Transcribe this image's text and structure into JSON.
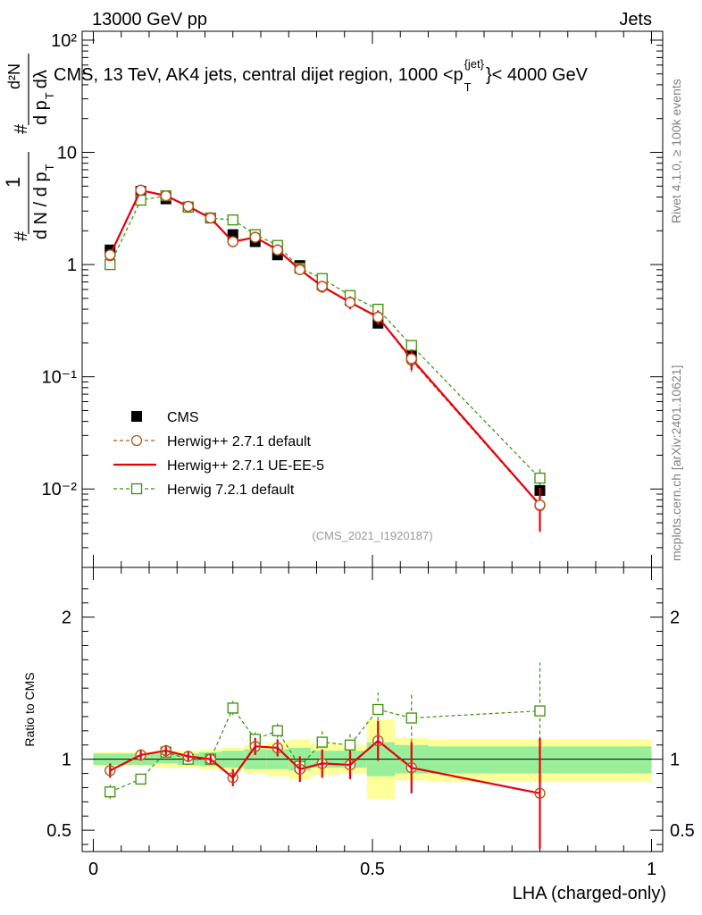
{
  "header": {
    "left": "13000 GeV pp",
    "right": "Jets",
    "title": "CMS, 13 TeV, AK4 jets, central dijet region, 1000 <p",
    "title_sup": "{jet}",
    "title_sub": "T",
    "title_end": "}< 4000 GeV"
  },
  "side": {
    "rivet": "Rivet 4.1.0, ≥ 100k events",
    "mcplots": "mcplots.cern.ch [arXiv:2401.10621]"
  },
  "ylabel_top": {
    "hash1": "#",
    "one": "1",
    "frac1_den": "d N / d p",
    "frac1_den_sub": "T",
    "hash2": "#",
    "d2N": "d²N",
    "frac2_den": "d p",
    "frac2_den_sub": "T",
    "dlambda": "dλ"
  },
  "analysis_id": "(CMS_2021_I1920187)",
  "legend": [
    "CMS",
    "Herwig++ 2.7.1 default",
    "Herwig++ 2.7.1 UE-EE-5",
    "Herwig 7.2.1 default"
  ],
  "xlabel": "LHA (charged-only)",
  "ratio_ylabel": "Ratio to CMS",
  "colors": {
    "data": "#000000",
    "h271": "#b35a1a",
    "ueee5": "#e8000b",
    "h721": "#3a8f0a",
    "band_inner": "#99ee99",
    "band_outer": "#ffff99"
  },
  "chart_data": {
    "type": "line",
    "x": [
      0.03,
      0.085,
      0.13,
      0.17,
      0.21,
      0.25,
      0.29,
      0.33,
      0.37,
      0.41,
      0.46,
      0.51,
      0.57,
      0.8
    ],
    "x_bins": [
      [
        0.0,
        0.06
      ],
      [
        0.06,
        0.11
      ],
      [
        0.11,
        0.15
      ],
      [
        0.15,
        0.19
      ],
      [
        0.19,
        0.23
      ],
      [
        0.23,
        0.27
      ],
      [
        0.27,
        0.31
      ],
      [
        0.31,
        0.35
      ],
      [
        0.35,
        0.39
      ],
      [
        0.39,
        0.44
      ],
      [
        0.44,
        0.49
      ],
      [
        0.49,
        0.54
      ],
      [
        0.54,
        0.6
      ],
      [
        0.6,
        1.0
      ]
    ],
    "main": {
      "yscale": "log",
      "ylim": [
        0.002,
        120
      ],
      "ytick_values": [
        0.01,
        0.1,
        1,
        10,
        100
      ],
      "ytick_labels": [
        "10⁻²",
        "10⁻¹",
        "1",
        "10",
        "10²"
      ],
      "series": [
        {
          "name": "CMS",
          "values": [
            1.35,
            4.5,
            3.85,
            3.25,
            2.6,
            1.85,
            1.6,
            1.22,
            0.98,
            0.66,
            0.48,
            0.3,
            0.155,
            0.0097
          ]
        },
        {
          "name": "Herwig++ 2.7.1 default",
          "values": [
            1.2,
            4.6,
            4.1,
            3.3,
            2.62,
            1.6,
            1.75,
            1.35,
            0.92,
            0.63,
            0.46,
            0.34,
            0.14,
            0.0071
          ],
          "err": [
            0.1,
            0.15,
            0.13,
            0.11,
            0.09,
            0.1,
            0.11,
            0.09,
            0.08,
            0.07,
            0.06,
            0.05,
            0.03,
            0.003
          ]
        },
        {
          "name": "Herwig++ 2.7.1 UE-EE-5",
          "values": [
            1.22,
            4.6,
            4.1,
            3.3,
            2.6,
            1.6,
            1.75,
            1.35,
            0.9,
            0.64,
            0.46,
            0.34,
            0.145,
            0.0072
          ],
          "err": [
            0.1,
            0.15,
            0.13,
            0.11,
            0.09,
            0.1,
            0.11,
            0.09,
            0.08,
            0.07,
            0.06,
            0.05,
            0.03,
            0.003
          ]
        },
        {
          "name": "Herwig 7.2.1 default",
          "values": [
            1.0,
            3.75,
            4.1,
            3.25,
            2.6,
            2.5,
            1.85,
            1.48,
            0.93,
            0.75,
            0.53,
            0.4,
            0.19,
            0.0125
          ],
          "err": [
            0.08,
            0.12,
            0.12,
            0.1,
            0.08,
            0.08,
            0.08,
            0.07,
            0.06,
            0.05,
            0.05,
            0.04,
            0.02,
            0.003
          ]
        }
      ]
    },
    "ratio": {
      "ylim": [
        0.35,
        2.35
      ],
      "ytick_values": [
        0.5,
        1,
        2
      ],
      "ytick_labels": [
        "0.5",
        "1",
        "2"
      ],
      "band_inner": [
        [
          0.96,
          1.04
        ],
        [
          0.96,
          1.04
        ],
        [
          0.97,
          1.04
        ],
        [
          0.96,
          1.04
        ],
        [
          0.95,
          1.05
        ],
        [
          0.94,
          1.06
        ],
        [
          0.93,
          1.07
        ],
        [
          0.93,
          1.07
        ],
        [
          0.92,
          1.08
        ],
        [
          0.94,
          1.06
        ],
        [
          0.94,
          1.06
        ],
        [
          0.88,
          1.12
        ],
        [
          0.9,
          1.1
        ],
        [
          0.9,
          1.09
        ]
      ],
      "band_outer": [
        [
          0.95,
          1.05
        ],
        [
          0.95,
          1.05
        ],
        [
          0.94,
          1.06
        ],
        [
          0.94,
          1.06
        ],
        [
          0.93,
          1.07
        ],
        [
          0.92,
          1.08
        ],
        [
          0.9,
          1.1
        ],
        [
          0.88,
          1.12
        ],
        [
          0.86,
          1.14
        ],
        [
          0.89,
          1.11
        ],
        [
          0.9,
          1.1
        ],
        [
          0.72,
          1.28
        ],
        [
          0.85,
          1.15
        ],
        [
          0.84,
          1.14
        ]
      ],
      "series": [
        {
          "name": "Herwig++ 2.7.1 default",
          "values": [
            0.92,
            1.03,
            1.06,
            1.02,
            1.0,
            0.87,
            1.09,
            1.08,
            0.93,
            0.97,
            0.96,
            1.13,
            0.94,
            0.76
          ],
          "err": [
            0.05,
            0.04,
            0.04,
            0.04,
            0.04,
            0.06,
            0.06,
            0.06,
            0.09,
            0.1,
            0.1,
            0.14,
            0.18,
            0.39
          ]
        },
        {
          "name": "Herwig++ 2.7.1 UE-EE-5",
          "values": [
            0.92,
            1.03,
            1.06,
            1.02,
            1.0,
            0.87,
            1.09,
            1.08,
            0.93,
            0.97,
            0.96,
            1.13,
            0.94,
            0.76
          ],
          "err": [
            0.05,
            0.04,
            0.04,
            0.04,
            0.04,
            0.06,
            0.06,
            0.06,
            0.09,
            0.1,
            0.1,
            0.14,
            0.18,
            0.39
          ]
        },
        {
          "name": "Herwig 7.2.1 default",
          "values": [
            0.77,
            0.86,
            1.05,
            1.0,
            1.0,
            1.36,
            1.14,
            1.2,
            0.95,
            1.12,
            1.1,
            1.35,
            1.29,
            1.34
          ],
          "err": [
            0.05,
            0.03,
            0.03,
            0.03,
            0.03,
            0.05,
            0.05,
            0.05,
            0.07,
            0.08,
            0.08,
            0.12,
            0.17,
            0.34
          ]
        }
      ]
    },
    "xlim": [
      -0.02,
      1.02
    ],
    "xtick_values": [
      0,
      0.5,
      1
    ],
    "xtick_labels": [
      "0",
      "0.5",
      "1"
    ]
  }
}
